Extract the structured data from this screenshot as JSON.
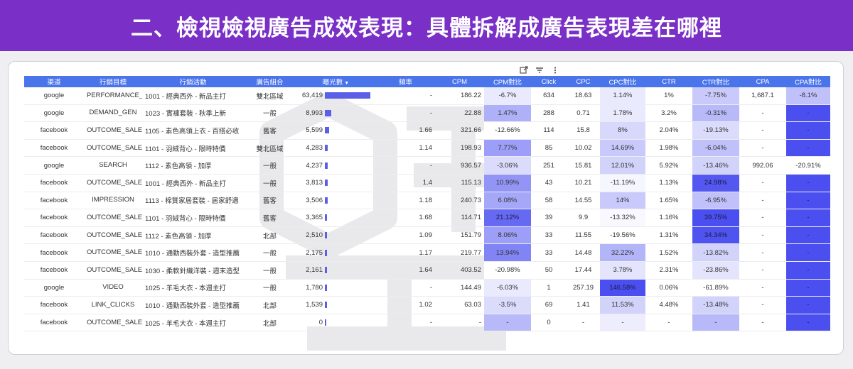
{
  "banner": {
    "title": "二、檢視檢視廣告成效表現：具體拆解成廣告表現差在哪裡"
  },
  "toolbar": {
    "icons": [
      "export-icon",
      "filter-icon",
      "more-vert-icon"
    ]
  },
  "colors": {
    "banner": "#7a2fc6",
    "header": "#4a74ea",
    "bar": "#5b5fe8",
    "heat_max": "#4b4ff0",
    "heat_light": "#ecebff"
  },
  "table": {
    "headers": [
      "渠道",
      "行銷目標",
      "行銷活動",
      "廣告組合",
      "曝光數",
      "頻率",
      "CPM",
      "CPM對比",
      "Click",
      "CPC",
      "CPC對比",
      "CTR",
      "CTR對比",
      "CPA",
      "CPA對比"
    ],
    "sorted_column": 4,
    "sort_arrow": "▼",
    "impressions_max": 63419,
    "rows": [
      {
        "channel": "google",
        "objective": "PERFORMANCE_MAX",
        "campaign": "1001 - 經典西外 - 新品主打",
        "adset": "雙北區域",
        "impressions": "63,419",
        "imp_value": 63419,
        "freq": "-",
        "cpm": "186.22",
        "cpm_cmp": "-6.7%",
        "cpm_i": 0.12,
        "click": "634",
        "cpc": "18.63",
        "cpc_cmp": "1.14%",
        "cpc_i": 0.12,
        "ctr": "1%",
        "ctr_cmp": "-7.75%",
        "ctr_i": 0.3,
        "cpa": "1,687.1",
        "cpa_cmp": "-8.1%",
        "cpa_i": 0.35
      },
      {
        "channel": "google",
        "objective": "DEMAND_GEN",
        "campaign": "1023 - 實褲套裝 - 秋季上新",
        "adset": "一般",
        "impressions": "8,993",
        "imp_value": 8993,
        "freq": "-",
        "cpm": "22.88",
        "cpm_cmp": "1.47%",
        "cpm_i": 0.45,
        "click": "288",
        "cpc": "0.71",
        "cpc_cmp": "1.78%",
        "cpc_i": 0.12,
        "ctr": "3.2%",
        "ctr_cmp": "-0.31%",
        "ctr_i": 0.4,
        "cpa": "-",
        "cpa_cmp": "-",
        "cpa_i": 1
      },
      {
        "channel": "facebook",
        "objective": "OUTCOME_SALES",
        "campaign": "1105 - 素色高領上衣 - 百搭必收",
        "adset": "舊客",
        "impressions": "5,599",
        "imp_value": 5599,
        "freq": "1.66",
        "cpm": "321.66",
        "cpm_cmp": "-12.66%",
        "cpm_i": 0,
        "click": "114",
        "cpc": "15.8",
        "cpc_cmp": "8%",
        "cpc_i": 0.22,
        "ctr": "2.04%",
        "ctr_cmp": "-19.13%",
        "ctr_i": 0.2,
        "cpa": "-",
        "cpa_cmp": "-",
        "cpa_i": 1
      },
      {
        "channel": "facebook",
        "objective": "OUTCOME_SALES",
        "campaign": "1101 - 羽絨背心 - 限時特價",
        "adset": "雙北區域",
        "impressions": "4,283",
        "imp_value": 4283,
        "freq": "1.14",
        "cpm": "198.93",
        "cpm_cmp": "7.77%",
        "cpm_i": 0.55,
        "click": "85",
        "cpc": "10.02",
        "cpc_cmp": "14.69%",
        "cpc_i": 0.3,
        "ctr": "1.98%",
        "ctr_cmp": "-6.04%",
        "ctr_i": 0.35,
        "cpa": "-",
        "cpa_cmp": "-",
        "cpa_i": 1
      },
      {
        "channel": "google",
        "objective": "SEARCH",
        "campaign": "1112 - 素色高領 - 加厚",
        "adset": "一般",
        "impressions": "4,237",
        "imp_value": 4237,
        "freq": "-",
        "cpm": "936.57",
        "cpm_cmp": "-3.06%",
        "cpm_i": 0.2,
        "click": "251",
        "cpc": "15.81",
        "cpc_cmp": "12.01%",
        "cpc_i": 0.25,
        "ctr": "5.92%",
        "ctr_cmp": "-13.46%",
        "ctr_i": 0.25,
        "cpa": "992.06",
        "cpa_cmp": "-20.91%",
        "cpa_i": 0
      },
      {
        "channel": "facebook",
        "objective": "OUTCOME_SALES",
        "campaign": "1001 - 經典西外 - 新品主打",
        "adset": "一般",
        "impressions": "3,813",
        "imp_value": 3813,
        "freq": "1.4",
        "cpm": "115.13",
        "cpm_cmp": "10.99%",
        "cpm_i": 0.6,
        "click": "43",
        "cpc": "10.21",
        "cpc_cmp": "-11.19%",
        "cpc_i": 0.05,
        "ctr": "1.13%",
        "ctr_cmp": "24.98%",
        "ctr_i": 0.95,
        "cpa": "-",
        "cpa_cmp": "-",
        "cpa_i": 1
      },
      {
        "channel": "facebook",
        "objective": "IMPRESSION",
        "campaign": "1113 - 棉質家居套裝 - 居家舒適",
        "adset": "舊客",
        "impressions": "3,506",
        "imp_value": 3506,
        "freq": "1.18",
        "cpm": "240.73",
        "cpm_cmp": "6.08%",
        "cpm_i": 0.5,
        "click": "58",
        "cpc": "14.55",
        "cpc_cmp": "14%",
        "cpc_i": 0.3,
        "ctr": "1.65%",
        "ctr_cmp": "-6.95%",
        "ctr_i": 0.35,
        "cpa": "-",
        "cpa_cmp": "-",
        "cpa_i": 1
      },
      {
        "channel": "facebook",
        "objective": "OUTCOME_SALES",
        "campaign": "1101 - 羽絨背心 - 限時特價",
        "adset": "舊客",
        "impressions": "3,365",
        "imp_value": 3365,
        "freq": "1.68",
        "cpm": "114.71",
        "cpm_cmp": "21.12%",
        "cpm_i": 0.85,
        "click": "39",
        "cpc": "9.9",
        "cpc_cmp": "-13.32%",
        "cpc_i": 0.04,
        "ctr": "1.16%",
        "ctr_cmp": "39.75%",
        "ctr_i": 1,
        "cpa": "-",
        "cpa_cmp": "-",
        "cpa_i": 1
      },
      {
        "channel": "facebook",
        "objective": "OUTCOME_SALES",
        "campaign": "1112 - 素色高領 - 加厚",
        "adset": "北部",
        "impressions": "2,510",
        "imp_value": 2510,
        "freq": "1.09",
        "cpm": "151.79",
        "cpm_cmp": "8.06%",
        "cpm_i": 0.55,
        "click": "33",
        "cpc": "11.55",
        "cpc_cmp": "-19.56%",
        "cpc_i": 0,
        "ctr": "1.31%",
        "ctr_cmp": "34.34%",
        "ctr_i": 0.98,
        "cpa": "-",
        "cpa_cmp": "-",
        "cpa_i": 1
      },
      {
        "channel": "facebook",
        "objective": "OUTCOME_SALES",
        "campaign": "1010 - 通勤西裝外套 - 造型推薦",
        "adset": "一般",
        "impressions": "2,175",
        "imp_value": 2175,
        "freq": "1.17",
        "cpm": "219.77",
        "cpm_cmp": "13.94%",
        "cpm_i": 0.7,
        "click": "33",
        "cpc": "14.48",
        "cpc_cmp": "32.22%",
        "cpc_i": 0.42,
        "ctr": "1.52%",
        "ctr_cmp": "-13.82%",
        "ctr_i": 0.25,
        "cpa": "-",
        "cpa_cmp": "-",
        "cpa_i": 1
      },
      {
        "channel": "facebook",
        "objective": "OUTCOME_SALES",
        "campaign": "1030 - 柔軟針織洋裝 - 週末造型",
        "adset": "一般",
        "impressions": "2,161",
        "imp_value": 2161,
        "freq": "1.64",
        "cpm": "403.52",
        "cpm_cmp": "-20.98%",
        "cpm_i": 0,
        "click": "50",
        "cpc": "17.44",
        "cpc_cmp": "3.78%",
        "cpc_i": 0.15,
        "ctr": "2.31%",
        "ctr_cmp": "-23.86%",
        "ctr_i": 0.15,
        "cpa": "-",
        "cpa_cmp": "-",
        "cpa_i": 1
      },
      {
        "channel": "google",
        "objective": "VIDEO",
        "campaign": "1025 - 羊毛大衣 - 本週主打",
        "adset": "一般",
        "impressions": "1,780",
        "imp_value": 1780,
        "freq": "-",
        "cpm": "144.49",
        "cpm_cmp": "-6.03%",
        "cpm_i": 0.12,
        "click": "1",
        "cpc": "257.19",
        "cpc_cmp": "146.58%",
        "cpc_i": 1,
        "ctr": "0.06%",
        "ctr_cmp": "-61.89%",
        "ctr_i": 0,
        "cpa": "-",
        "cpa_cmp": "-",
        "cpa_i": 1
      },
      {
        "channel": "facebook",
        "objective": "LINK_CLICKS",
        "campaign": "1010 - 通勤西裝外套 - 造型推薦",
        "adset": "北部",
        "impressions": "1,539",
        "imp_value": 1539,
        "freq": "1.02",
        "cpm": "63.03",
        "cpm_cmp": "-3.5%",
        "cpm_i": 0.2,
        "click": "69",
        "cpc": "1.41",
        "cpc_cmp": "11.53%",
        "cpc_i": 0.25,
        "ctr": "4.48%",
        "ctr_cmp": "-13.48%",
        "ctr_i": 0.25,
        "cpa": "-",
        "cpa_cmp": "-",
        "cpa_i": 1
      },
      {
        "channel": "facebook",
        "objective": "OUTCOME_SALES",
        "campaign": "1025 - 羊毛大衣 - 本週主打",
        "adset": "北部",
        "impressions": "0",
        "imp_value": 0,
        "freq": "-",
        "cpm": "-",
        "cpm_cmp": "-",
        "cpm_i": 0.4,
        "click": "0",
        "cpc": "-",
        "cpc_cmp": "-",
        "cpc_i": 0.1,
        "ctr": "-",
        "ctr_cmp": "-",
        "ctr_i": 0.4,
        "cpa": "-",
        "cpa_cmp": "-",
        "cpa_i": 1
      }
    ]
  }
}
